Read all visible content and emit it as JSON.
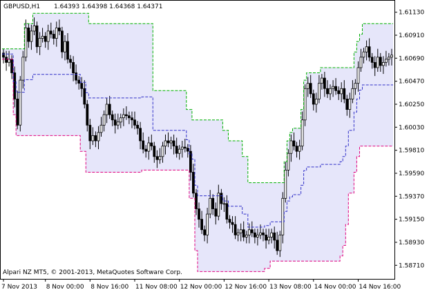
{
  "header": {
    "symbol": "GBPUSD,H1",
    "ohlc": "1.64393 1.64398 1.64368 1.64371"
  },
  "copyright": "Alpari NZ MT5, © 2001-2013, MetaQuotes Software Corp.",
  "colors": {
    "background": "#ffffff",
    "band_fill": "#e6e6fa",
    "upper_line": "#00b000",
    "lower_line": "#e0007e",
    "middle_line": "#3030c8",
    "candle": "#000000",
    "frame": "#000000"
  },
  "chart_data": {
    "type": "candlestick",
    "timeframe": "H1",
    "ylim": [
      1.5858,
      1.6124
    ],
    "y_ticks": [
      "1.61130",
      "1.60910",
      "1.60690",
      "1.60470",
      "1.60250",
      "1.60030",
      "1.59810",
      "1.59590",
      "1.59370",
      "1.59150",
      "1.58930",
      "1.58710"
    ],
    "x_ticks": [
      "7 Nov 2013",
      "8 Nov 00:00",
      "8 Nov 16:00",
      "11 Nov 08:00",
      "12 Nov 00:00",
      "12 Nov 16:00",
      "13 Nov 08:00",
      "14 Nov 00:00",
      "14 Nov 16:00"
    ],
    "x_tick_bars": [
      0,
      15,
      31,
      47,
      63,
      79,
      95,
      111,
      127
    ],
    "bar_count": 140,
    "close": [
      1.607,
      1.6065,
      1.6068,
      1.6055,
      1.603,
      1.6005,
      1.6048,
      1.607,
      1.6098,
      1.6085,
      1.6095,
      1.61,
      1.608,
      1.6088,
      1.609,
      1.6085,
      1.6095,
      1.6092,
      1.6088,
      1.6098,
      1.6095,
      1.6075,
      1.6085,
      1.6068,
      1.6065,
      1.6055,
      1.6048,
      1.6045,
      1.604,
      1.6025,
      1.6005,
      1.599,
      1.5995,
      1.599,
      1.5998,
      1.6005,
      1.6015,
      1.6025,
      1.6015,
      1.601,
      1.6005,
      1.6008,
      1.6012,
      1.6015,
      1.6014,
      1.6012,
      1.601,
      1.6005,
      1.6002,
      1.599,
      1.5982,
      1.598,
      1.5988,
      1.5985,
      1.5975,
      1.5972,
      1.5975,
      1.5985,
      1.599,
      1.5988,
      1.599,
      1.5985,
      1.5978,
      1.5982,
      1.5984,
      1.5983,
      1.598,
      1.596,
      1.594,
      1.5925,
      1.5915,
      1.5905,
      1.59,
      1.592,
      1.5935,
      1.5925,
      1.5918,
      1.594,
      1.593,
      1.593,
      1.5915,
      1.5912,
      1.591,
      1.59,
      1.5902,
      1.5905,
      1.5898,
      1.59,
      1.5905,
      1.5902,
      1.5898,
      1.59,
      1.5902,
      1.59,
      1.5895,
      1.5898,
      1.5902,
      1.5895,
      1.5885,
      1.59,
      1.5935,
      1.5962,
      1.5978,
      1.599,
      1.5985,
      1.598,
      1.5985,
      1.601,
      1.604,
      1.6045,
      1.6035,
      1.6025,
      1.603,
      1.6045,
      1.605,
      1.604,
      1.6035,
      1.604,
      1.6042,
      1.6038,
      1.6035,
      1.604,
      1.603,
      1.602,
      1.603,
      1.604,
      1.6045,
      1.606,
      1.607,
      1.6075,
      1.608,
      1.607,
      1.6065,
      1.606,
      1.607,
      1.6062,
      1.6065,
      1.6068,
      1.607,
      1.6072
    ],
    "highest_high": [
      1.6078,
      1.6078,
      1.6078,
      1.6078,
      1.6078,
      1.6078,
      1.6078,
      1.6078,
      1.6102,
      1.6102,
      1.6102,
      1.6112,
      1.6112,
      1.6112,
      1.6112,
      1.6112,
      1.6112,
      1.6112,
      1.6112,
      1.6112,
      1.6112,
      1.6112,
      1.6112,
      1.6112,
      1.6112,
      1.6112,
      1.6112,
      1.6112,
      1.6112,
      1.6112,
      1.6112,
      1.6102,
      1.6102,
      1.6102,
      1.6102,
      1.6102,
      1.6102,
      1.6102,
      1.6102,
      1.6102,
      1.6102,
      1.6102,
      1.6102,
      1.6102,
      1.6102,
      1.6102,
      1.6102,
      1.6102,
      1.6102,
      1.6102,
      1.6102,
      1.6102,
      1.6102,
      1.6102,
      1.6038,
      1.6038,
      1.6038,
      1.6038,
      1.6038,
      1.6038,
      1.6038,
      1.6038,
      1.6038,
      1.6038,
      1.6038,
      1.6038,
      1.602,
      1.602,
      1.601,
      1.601,
      1.601,
      1.601,
      1.601,
      1.601,
      1.601,
      1.601,
      1.601,
      1.601,
      1.601,
      1.6,
      1.6,
      1.599,
      1.599,
      1.599,
      1.599,
      1.599,
      1.5975,
      1.5975,
      1.595,
      1.595,
      1.595,
      1.595,
      1.595,
      1.595,
      1.595,
      1.595,
      1.595,
      1.595,
      1.595,
      1.595,
      1.595,
      1.597,
      1.599,
      1.5998,
      1.6002,
      1.6002,
      1.6002,
      1.602,
      1.6048,
      1.6055,
      1.6055,
      1.6055,
      1.6055,
      1.6055,
      1.606,
      1.606,
      1.606,
      1.606,
      1.606,
      1.606,
      1.606,
      1.606,
      1.606,
      1.606,
      1.606,
      1.606,
      1.6075,
      1.6085,
      1.6092,
      1.6102,
      1.6102,
      1.6102,
      1.6102,
      1.6102,
      1.6102,
      1.6102,
      1.6102,
      1.6102,
      1.6102,
      1.6102
    ],
    "lowest_low": [
      1.6068,
      1.6068,
      1.6068,
      1.6068,
      1.6015,
      1.5995,
      1.5995,
      1.5995,
      1.5995,
      1.5995,
      1.5995,
      1.5995,
      1.5995,
      1.5995,
      1.5995,
      1.5995,
      1.5995,
      1.5995,
      1.5995,
      1.5995,
      1.5995,
      1.5995,
      1.5995,
      1.5995,
      1.5995,
      1.5995,
      1.5995,
      1.5995,
      1.598,
      1.598,
      1.596,
      1.596,
      1.596,
      1.596,
      1.596,
      1.596,
      1.596,
      1.596,
      1.596,
      1.596,
      1.596,
      1.596,
      1.596,
      1.596,
      1.596,
      1.596,
      1.596,
      1.596,
      1.596,
      1.596,
      1.5962,
      1.5962,
      1.5962,
      1.5962,
      1.5962,
      1.5962,
      1.5962,
      1.5962,
      1.5962,
      1.5962,
      1.5962,
      1.5962,
      1.5962,
      1.5962,
      1.5962,
      1.5962,
      1.5962,
      1.5935,
      1.5935,
      1.5885,
      1.5865,
      1.5865,
      1.5865,
      1.5865,
      1.5865,
      1.5865,
      1.5865,
      1.5865,
      1.5865,
      1.5865,
      1.5865,
      1.5865,
      1.5865,
      1.5865,
      1.5865,
      1.5865,
      1.5865,
      1.5865,
      1.5865,
      1.5865,
      1.5865,
      1.5865,
      1.5865,
      1.5865,
      1.5868,
      1.5868,
      1.5875,
      1.5875,
      1.5875,
      1.5875,
      1.5875,
      1.5875,
      1.5875,
      1.5875,
      1.5875,
      1.5875,
      1.5875,
      1.5875,
      1.5875,
      1.5875,
      1.5875,
      1.5875,
      1.5875,
      1.5875,
      1.5875,
      1.5875,
      1.5875,
      1.5875,
      1.5875,
      1.5875,
      1.5875,
      1.588,
      1.589,
      1.591,
      1.594,
      1.594,
      1.596,
      1.5975,
      1.5985,
      1.5985,
      1.5985,
      1.5985,
      1.5985,
      1.5985,
      1.5985,
      1.5985,
      1.5985,
      1.5985,
      1.5985,
      1.5985,
      1.5985,
      1.5985
    ]
  }
}
